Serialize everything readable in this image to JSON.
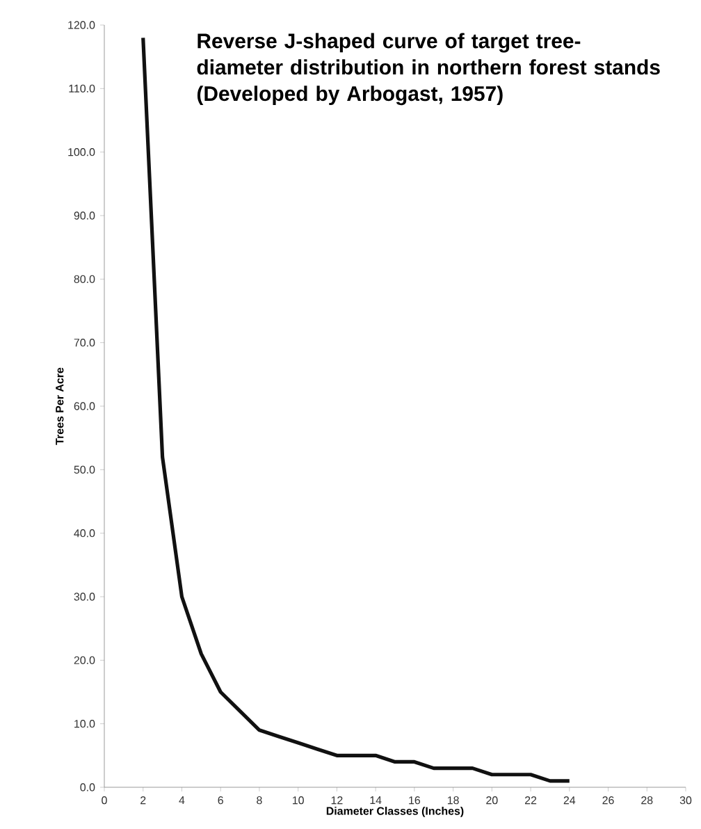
{
  "chart_data": {
    "type": "line",
    "title": "Reverse J-shaped curve of target tree-diameter distribution in northern forest stands (Developed by Arbogast, 1957)",
    "xlabel": "Diameter Classes (Inches)",
    "ylabel": "Trees Per Acre",
    "x": [
      2,
      3,
      4,
      5,
      6,
      7,
      8,
      9,
      10,
      11,
      12,
      13,
      14,
      15,
      16,
      17,
      18,
      19,
      20,
      21,
      22,
      23,
      24
    ],
    "values": [
      118,
      52,
      30,
      21,
      15,
      12,
      9,
      8,
      7,
      6,
      5,
      5,
      5,
      4,
      4,
      3,
      3,
      3,
      2,
      2,
      2,
      1,
      1
    ],
    "color": "#111111",
    "marker": "none",
    "line_style": "solid",
    "grid": false,
    "xlim": [
      0,
      30
    ],
    "xticks": [
      0,
      2,
      4,
      6,
      8,
      10,
      12,
      14,
      16,
      18,
      20,
      22,
      24,
      26,
      28,
      30
    ],
    "ylim": [
      0,
      120
    ],
    "yticks": [
      {
        "value": 0,
        "label": "0.0"
      },
      {
        "value": 10,
        "label": "10.0"
      },
      {
        "value": 20,
        "label": "20.0"
      },
      {
        "value": 30,
        "label": "30.0"
      },
      {
        "value": 40,
        "label": "40.0"
      },
      {
        "value": 50,
        "label": "50.0"
      },
      {
        "value": 60,
        "label": "60.0"
      },
      {
        "value": 70,
        "label": "70.0"
      },
      {
        "value": 80,
        "label": "80.0"
      },
      {
        "value": 90,
        "label": "90.0"
      },
      {
        "value": 100,
        "label": "100.0"
      },
      {
        "value": 110,
        "label": "110.0"
      },
      {
        "value": 120,
        "label": "120.0"
      }
    ]
  }
}
